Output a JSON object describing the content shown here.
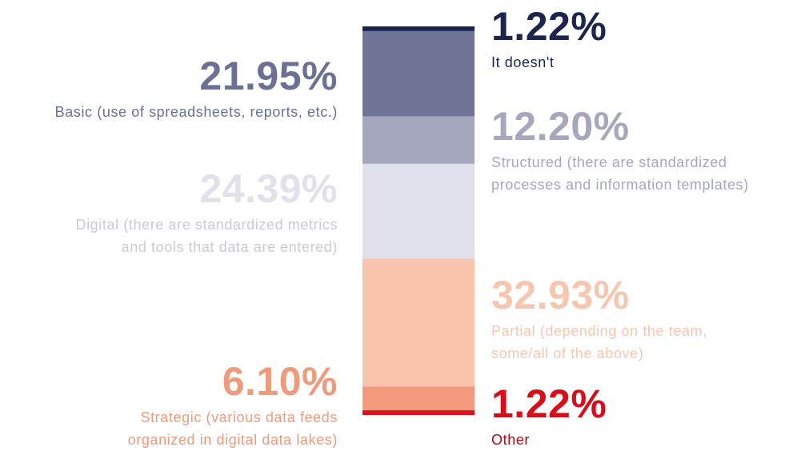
{
  "chart_data": {
    "type": "stacked-column",
    "series": [
      {
        "name": "It doesn't",
        "color": "#1b2550",
        "values": [
          1.22
        ],
        "value_labels": [
          "1.22%"
        ]
      },
      {
        "name": "Basic (use of spreadsheets, reports, etc.)",
        "color": "#707496",
        "values": [
          21.95
        ],
        "value_labels": [
          "21.95%"
        ]
      },
      {
        "name": "Structured (there are standardized processes and information templates)",
        "color": "#a5a7be",
        "values": [
          12.2
        ],
        "value_labels": [
          "12.20%"
        ]
      },
      {
        "name": "Digital (there are standardized metrics and tools that data are entered)",
        "color": "#dfe0ea",
        "values": [
          24.39
        ],
        "value_labels": [
          "24.39%"
        ]
      },
      {
        "name": "Partial (depending on the team, some/all of the above)",
        "color": "#f7c5ae",
        "values": [
          32.93
        ],
        "value_labels": [
          "32.93%"
        ]
      },
      {
        "name": "Strategic (various data feeds organized in digital data lakes)",
        "color": "#f29a7b",
        "values": [
          6.1
        ],
        "value_labels": [
          "6.10%"
        ]
      },
      {
        "name": "Other",
        "color": "#e0101f",
        "values": [
          1.22
        ],
        "value_labels": [
          "1.22%"
        ]
      }
    ]
  }
}
